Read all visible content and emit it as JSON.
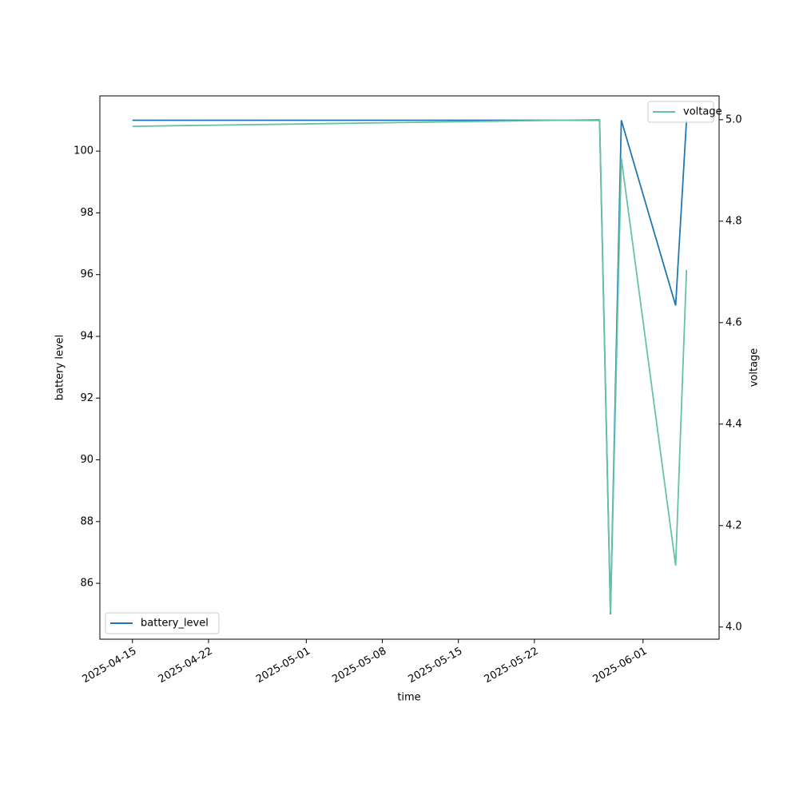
{
  "chart_data": {
    "type": "line",
    "x_label": "time",
    "y_label": "battery level",
    "y2_label": "voltage",
    "x": [
      "2025-04-15",
      "2025-05-28",
      "2025-05-29",
      "2025-05-30",
      "2025-06-04",
      "2025-06-05"
    ],
    "xlim": [
      "2025-04-12",
      "2025-06-08"
    ],
    "xticks": [
      "2025-04-15",
      "2025-04-22",
      "2025-05-01",
      "2025-05-08",
      "2025-05-15",
      "2025-05-22",
      "2025-06-01"
    ],
    "ylim": [
      84.19,
      101.79
    ],
    "yticks": [
      86,
      88,
      90,
      92,
      94,
      96,
      98,
      100
    ],
    "y2lim": [
      3.976,
      5.047
    ],
    "y2ticks": [
      {
        "value": 4,
        "label": "4.0"
      },
      4.2,
      4.4,
      4.6,
      4.8,
      {
        "value": 5,
        "label": "5.0"
      }
    ],
    "series": [
      {
        "name": "battery_level",
        "color": "#1f77b4",
        "legend": "lower left",
        "values": [
          101,
          101,
          85,
          101,
          95,
          101
        ]
      },
      {
        "name": "voltage",
        "color": "#66c2a5",
        "axis": "y2",
        "legend": "upper right",
        "values": [
          4.987,
          5.0,
          4.027,
          4.924,
          4.121,
          4.704
        ]
      }
    ]
  }
}
